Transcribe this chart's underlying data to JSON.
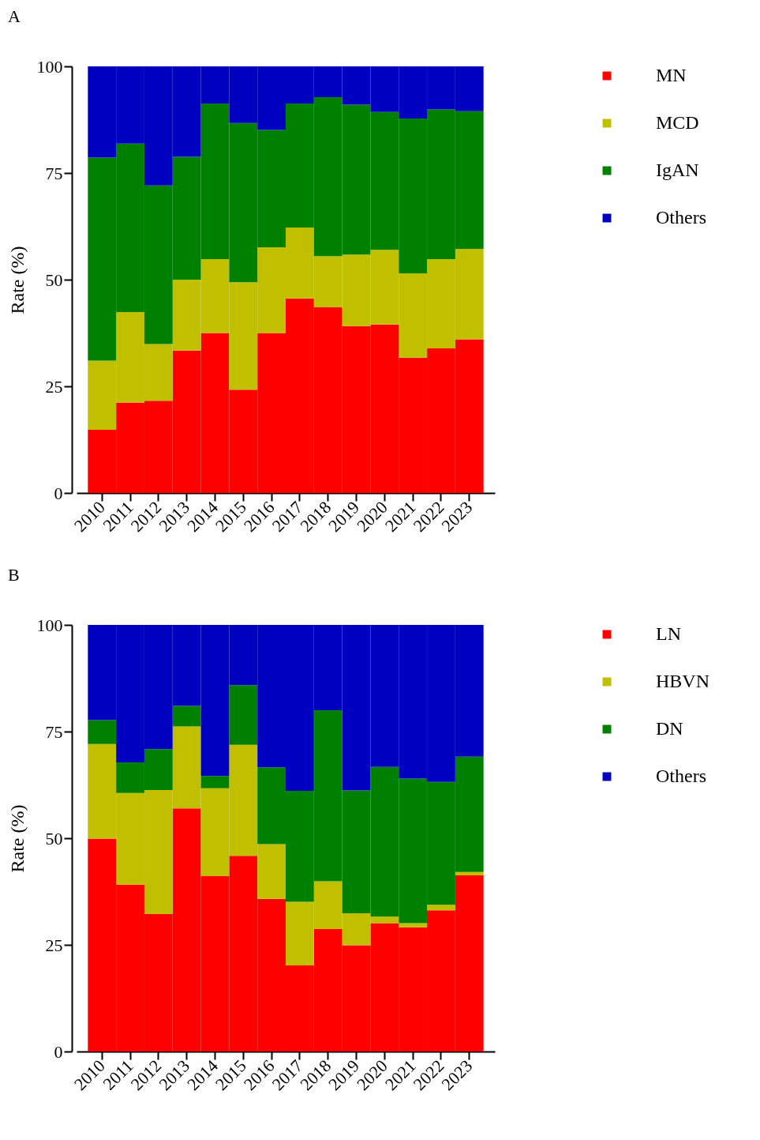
{
  "chart_data": [
    {
      "type": "bar",
      "title": "A",
      "ylabel": "Rate (%)",
      "categories": [
        "2010",
        "2011",
        "2012",
        "2013",
        "2014",
        "2015",
        "2016",
        "2017",
        "2018",
        "2019",
        "2020",
        "2021",
        "2022",
        "2023"
      ],
      "stacked": true,
      "ylim": [
        0,
        100
      ],
      "yticks": [
        0,
        25,
        50,
        75,
        100
      ],
      "grid": false,
      "legend": "top right",
      "series": [
        {
          "name": "MN",
          "color": "#ff0000",
          "values": [
            14.8,
            21.2,
            21.6,
            33.4,
            37.5,
            24.2,
            37.5,
            45.6,
            43.5,
            39.1,
            39.5,
            31.7,
            33.9,
            36.0
          ]
        },
        {
          "name": "MCD",
          "color": "#c0c000",
          "values": [
            16.2,
            21.2,
            13.3,
            16.6,
            17.3,
            25.2,
            20.1,
            16.6,
            12.0,
            16.8,
            17.5,
            19.8,
            20.9,
            21.2
          ]
        },
        {
          "name": "IgAN",
          "color": "#008000",
          "values": [
            47.6,
            39.5,
            37.2,
            28.8,
            36.5,
            37.3,
            27.5,
            29.1,
            37.3,
            35.1,
            32.3,
            36.3,
            35.1,
            32.3
          ]
        },
        {
          "name": "Others",
          "color": "#0000c0",
          "values": [
            21.4,
            18.1,
            27.9,
            21.2,
            8.7,
            13.3,
            14.9,
            8.7,
            7.2,
            9.0,
            10.7,
            12.2,
            10.1,
            10.5
          ]
        }
      ]
    },
    {
      "type": "bar",
      "title": "B",
      "ylabel": "Rate (%)",
      "categories": [
        "2010",
        "2011",
        "2012",
        "2013",
        "2014",
        "2015",
        "2016",
        "2017",
        "2018",
        "2019",
        "2020",
        "2021",
        "2022",
        "2023"
      ],
      "stacked": true,
      "ylim": [
        0,
        100
      ],
      "yticks": [
        0,
        25,
        50,
        75,
        100
      ],
      "grid": false,
      "legend": "top right",
      "series": [
        {
          "name": "LN",
          "color": "#ff0000",
          "values": [
            49.9,
            39.1,
            32.2,
            57.0,
            41.1,
            45.9,
            35.8,
            20.2,
            28.7,
            24.9,
            30.1,
            29.1,
            33.1,
            41.3
          ]
        },
        {
          "name": "HBVN",
          "color": "#c0c000",
          "values": [
            22.2,
            21.5,
            29.1,
            19.2,
            20.6,
            26.0,
            12.8,
            14.9,
            11.2,
            7.5,
            1.5,
            1.0,
            1.3,
            0.8
          ]
        },
        {
          "name": "DN",
          "color": "#008000",
          "values": [
            5.6,
            7.2,
            9.6,
            4.8,
            2.9,
            14.0,
            18.0,
            26.0,
            40.1,
            28.8,
            35.1,
            33.9,
            28.8,
            27.0
          ]
        },
        {
          "name": "Others",
          "color": "#0000c0",
          "values": [
            22.3,
            32.2,
            29.1,
            19.0,
            35.4,
            14.1,
            33.4,
            38.9,
            20.0,
            38.8,
            33.3,
            36.0,
            36.8,
            30.9
          ]
        }
      ]
    }
  ]
}
